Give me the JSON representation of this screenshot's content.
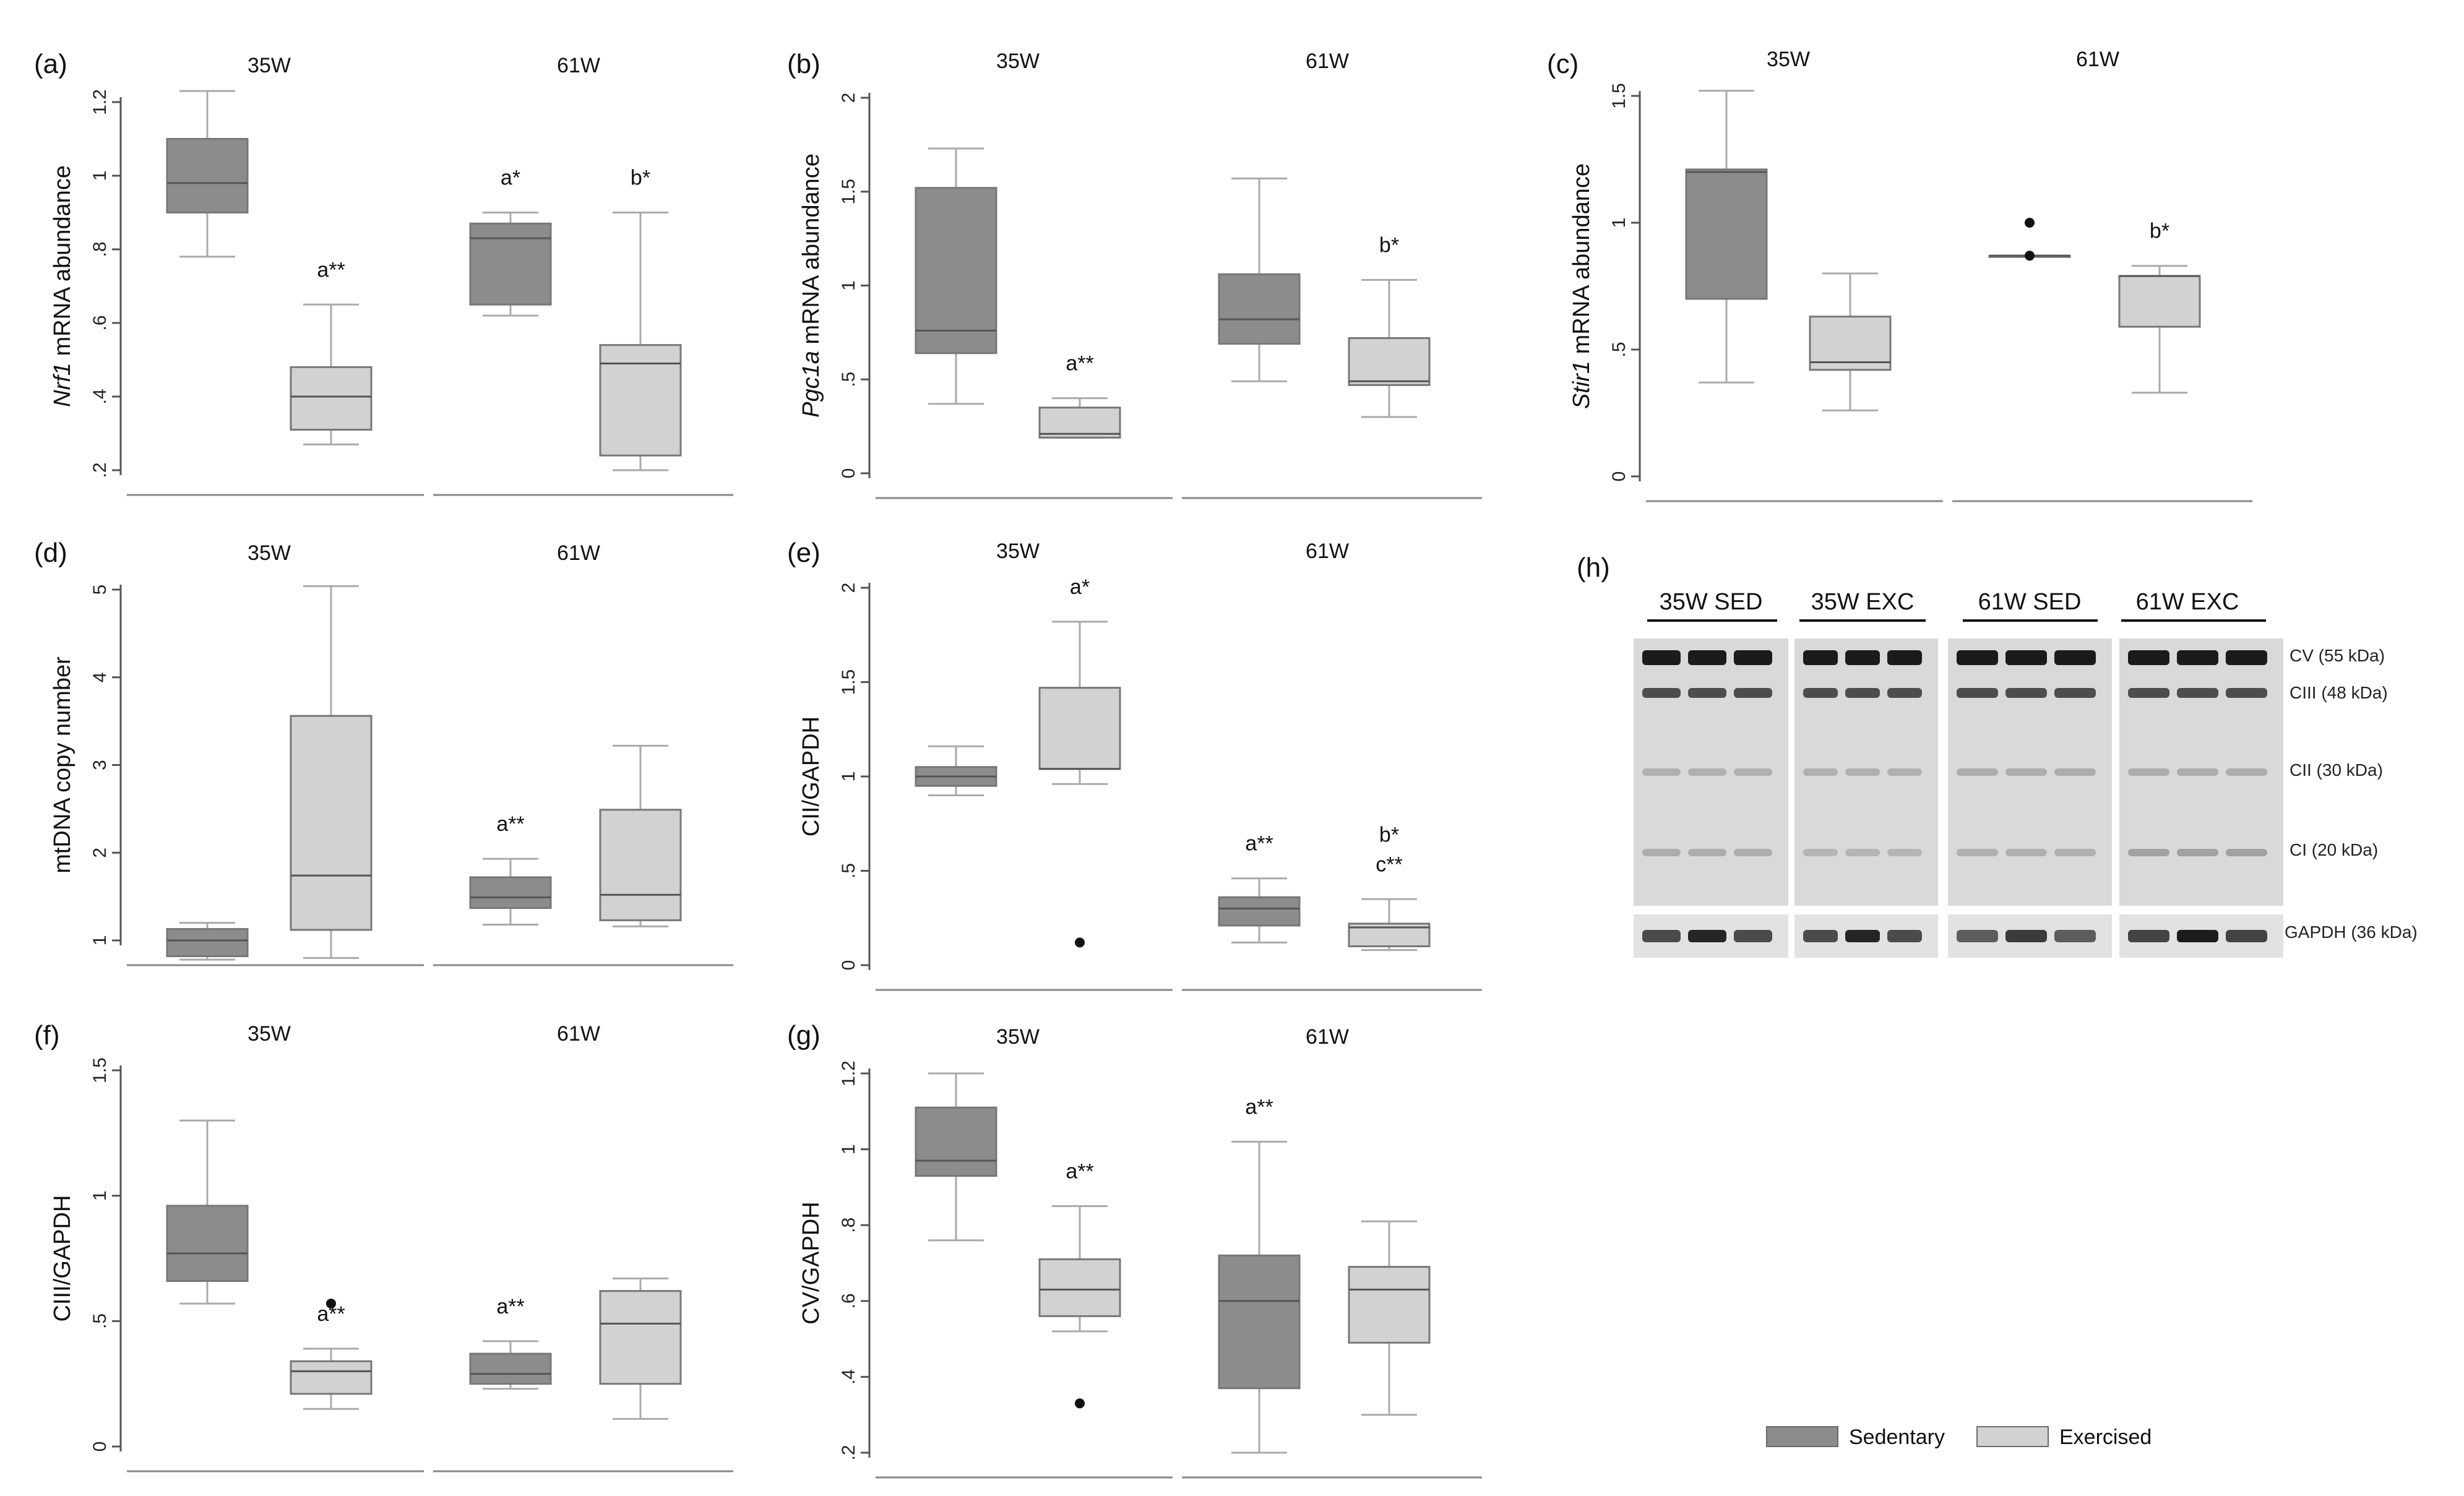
{
  "figure": {
    "legend": {
      "items": [
        {
          "label": "Sedentary",
          "color": "#8c8c8c"
        },
        {
          "label": "Exercised",
          "color": "#d2d2d2"
        }
      ]
    },
    "blot": {
      "label": "(h)",
      "groups": [
        "35W SED",
        "35W EXC",
        "61W SED",
        "61W EXC"
      ],
      "bands": [
        "CV (55 kDa)",
        "CIII (48 kDa)",
        "CII (30 kDa)",
        "CI (20 kDa)",
        "GAPDH (36 kDa)"
      ]
    }
  },
  "chart_data": [
    {
      "type": "boxplot",
      "panel": "(a)",
      "ylabel_italic": "Nrf1",
      "ylabel": "mRNA abundance",
      "ylim": [
        0.2,
        1.2
      ],
      "yticks": [
        0.2,
        0.4,
        0.6,
        0.8,
        1.0,
        1.2
      ],
      "ytick_labels": [
        ".2",
        ".4",
        ".6",
        ".8",
        "1",
        "1.2"
      ],
      "groups": [
        "35W",
        "61W"
      ],
      "boxes": [
        {
          "group": "35W",
          "condition": "Sedentary",
          "whisker_low": 0.78,
          "q1": 0.9,
          "median": 0.98,
          "q3": 1.1,
          "whisker_high": 1.23,
          "outliers": [],
          "annotation": []
        },
        {
          "group": "35W",
          "condition": "Exercised",
          "whisker_low": 0.27,
          "q1": 0.31,
          "median": 0.4,
          "q3": 0.48,
          "whisker_high": 0.65,
          "outliers": [],
          "annotation": [
            "a**"
          ]
        },
        {
          "group": "61W",
          "condition": "Sedentary",
          "whisker_low": 0.62,
          "q1": 0.65,
          "median": 0.83,
          "q3": 0.87,
          "whisker_high": 0.9,
          "outliers": [],
          "annotation": [
            "a*"
          ]
        },
        {
          "group": "61W",
          "condition": "Exercised",
          "whisker_low": 0.2,
          "q1": 0.24,
          "median": 0.49,
          "q3": 0.54,
          "whisker_high": 0.9,
          "outliers": [],
          "annotation": [
            "b*"
          ]
        }
      ]
    },
    {
      "type": "boxplot",
      "panel": "(b)",
      "ylabel_italic": "Pgc1a",
      "ylabel": "mRNA abundance",
      "ylim": [
        0,
        2
      ],
      "yticks": [
        0,
        0.5,
        1,
        1.5,
        2
      ],
      "ytick_labels": [
        "0",
        ".5",
        "1",
        "1.5",
        "2"
      ],
      "groups": [
        "35W",
        "61W"
      ],
      "boxes": [
        {
          "group": "35W",
          "condition": "Sedentary",
          "whisker_low": 0.37,
          "q1": 0.64,
          "median": 0.76,
          "q3": 1.52,
          "whisker_high": 1.73,
          "outliers": [],
          "annotation": []
        },
        {
          "group": "35W",
          "condition": "Exercised",
          "whisker_low": 0.19,
          "q1": 0.19,
          "median": 0.21,
          "q3": 0.35,
          "whisker_high": 0.4,
          "outliers": [],
          "annotation": [
            "a**"
          ]
        },
        {
          "group": "61W",
          "condition": "Sedentary",
          "whisker_low": 0.49,
          "q1": 0.69,
          "median": 0.82,
          "q3": 1.06,
          "whisker_high": 1.57,
          "outliers": [],
          "annotation": []
        },
        {
          "group": "61W",
          "condition": "Exercised",
          "whisker_low": 0.3,
          "q1": 0.47,
          "median": 0.49,
          "q3": 0.72,
          "whisker_high": 1.03,
          "outliers": [],
          "annotation": [
            "b*"
          ]
        }
      ]
    },
    {
      "type": "boxplot",
      "panel": "(c)",
      "ylabel_italic": "Stir1",
      "ylabel": "mRNA abundance",
      "ylim": [
        0,
        1.5
      ],
      "yticks": [
        0,
        0.5,
        1,
        1.5
      ],
      "ytick_labels": [
        "0",
        ".5",
        "1",
        "1.5"
      ],
      "groups": [
        "35W",
        "61W"
      ],
      "boxes": [
        {
          "group": "35W",
          "condition": "Sedentary",
          "whisker_low": 0.37,
          "q1": 0.7,
          "median": 1.2,
          "q3": 1.21,
          "whisker_high": 1.52,
          "outliers": [],
          "annotation": []
        },
        {
          "group": "35W",
          "condition": "Exercised",
          "whisker_low": 0.26,
          "q1": 0.42,
          "median": 0.45,
          "q3": 0.63,
          "whisker_high": 0.8,
          "outliers": [],
          "annotation": []
        },
        {
          "group": "61W",
          "condition": "Sedentary",
          "whisker_low": 0.87,
          "q1": 0.87,
          "median": 0.87,
          "q3": 0.87,
          "whisker_high": 0.87,
          "outliers": [
            1.0,
            0.87
          ],
          "annotation": []
        },
        {
          "group": "61W",
          "condition": "Exercised",
          "whisker_low": 0.33,
          "q1": 0.59,
          "median": 0.79,
          "q3": 0.79,
          "whisker_high": 0.83,
          "outliers": [],
          "annotation": [
            "b*"
          ]
        }
      ]
    },
    {
      "type": "boxplot",
      "panel": "(d)",
      "ylabel_italic": "",
      "ylabel": "mtDNA copy number",
      "ylim": [
        1,
        5
      ],
      "yticks": [
        1,
        2,
        3,
        4,
        5
      ],
      "ytick_labels": [
        "1",
        "2",
        "3",
        "4",
        "5"
      ],
      "groups": [
        "35W",
        "61W"
      ],
      "boxes": [
        {
          "group": "35W",
          "condition": "Sedentary",
          "whisker_low": 0.78,
          "q1": 0.82,
          "median": 1.0,
          "q3": 1.13,
          "whisker_high": 1.2,
          "outliers": [],
          "annotation": []
        },
        {
          "group": "35W",
          "condition": "Exercised",
          "whisker_low": 0.8,
          "q1": 1.12,
          "median": 1.74,
          "q3": 3.56,
          "whisker_high": 5.04,
          "outliers": [],
          "annotation": []
        },
        {
          "group": "61W",
          "condition": "Sedentary",
          "whisker_low": 1.18,
          "q1": 1.37,
          "median": 1.49,
          "q3": 1.72,
          "whisker_high": 1.93,
          "outliers": [],
          "annotation": [
            "a**"
          ]
        },
        {
          "group": "61W",
          "condition": "Exercised",
          "whisker_low": 1.16,
          "q1": 1.23,
          "median": 1.52,
          "q3": 2.49,
          "whisker_high": 3.22,
          "outliers": [],
          "annotation": []
        }
      ]
    },
    {
      "type": "boxplot",
      "panel": "(e)",
      "ylabel_italic": "",
      "ylabel": "CII/GAPDH",
      "ylim": [
        0,
        2
      ],
      "yticks": [
        0,
        0.5,
        1,
        1.5,
        2
      ],
      "ytick_labels": [
        "0",
        ".5",
        "1",
        "1.5",
        "2"
      ],
      "groups": [
        "35W",
        "61W"
      ],
      "boxes": [
        {
          "group": "35W",
          "condition": "Sedentary",
          "whisker_low": 0.9,
          "q1": 0.95,
          "median": 1.0,
          "q3": 1.05,
          "whisker_high": 1.16,
          "outliers": [],
          "annotation": []
        },
        {
          "group": "35W",
          "condition": "Exercised",
          "whisker_low": 0.96,
          "q1": 1.04,
          "median": 1.04,
          "q3": 1.47,
          "whisker_high": 1.82,
          "outliers": [
            0.12
          ],
          "annotation": [
            "a*"
          ]
        },
        {
          "group": "61W",
          "condition": "Sedentary",
          "whisker_low": 0.12,
          "q1": 0.21,
          "median": 0.3,
          "q3": 0.36,
          "whisker_high": 0.46,
          "outliers": [],
          "annotation": [
            "a**"
          ]
        },
        {
          "group": "61W",
          "condition": "Exercised",
          "whisker_low": 0.08,
          "q1": 0.1,
          "median": 0.2,
          "q3": 0.22,
          "whisker_high": 0.35,
          "outliers": [],
          "annotation": [
            "b*",
            "c**"
          ]
        }
      ]
    },
    {
      "type": "boxplot",
      "panel": "(f)",
      "ylabel_italic": "",
      "ylabel": "CIII/GAPDH",
      "ylim": [
        0,
        1.5
      ],
      "yticks": [
        0,
        0.5,
        1,
        1.5
      ],
      "ytick_labels": [
        "0",
        ".5",
        "1",
        "1.5"
      ],
      "groups": [
        "35W",
        "61W"
      ],
      "boxes": [
        {
          "group": "35W",
          "condition": "Sedentary",
          "whisker_low": 0.57,
          "q1": 0.66,
          "median": 0.77,
          "q3": 0.96,
          "whisker_high": 1.3,
          "outliers": [],
          "annotation": []
        },
        {
          "group": "35W",
          "condition": "Exercised",
          "whisker_low": 0.15,
          "q1": 0.21,
          "median": 0.3,
          "q3": 0.34,
          "whisker_high": 0.39,
          "outliers": [
            0.57
          ],
          "annotation": [
            "a**"
          ]
        },
        {
          "group": "61W",
          "condition": "Sedentary",
          "whisker_low": 0.23,
          "q1": 0.25,
          "median": 0.29,
          "q3": 0.37,
          "whisker_high": 0.42,
          "outliers": [],
          "annotation": [
            "a**"
          ]
        },
        {
          "group": "61W",
          "condition": "Exercised",
          "whisker_low": 0.11,
          "q1": 0.25,
          "median": 0.49,
          "q3": 0.62,
          "whisker_high": 0.67,
          "outliers": [],
          "annotation": []
        }
      ]
    },
    {
      "type": "boxplot",
      "panel": "(g)",
      "ylabel_italic": "",
      "ylabel": "CV/GAPDH",
      "ylim": [
        0.2,
        1.2
      ],
      "yticks": [
        0.2,
        0.4,
        0.6,
        0.8,
        1.0,
        1.2
      ],
      "ytick_labels": [
        ".2",
        ".4",
        ".6",
        ".8",
        "1",
        "1.2"
      ],
      "groups": [
        "35W",
        "61W"
      ],
      "boxes": [
        {
          "group": "35W",
          "condition": "Sedentary",
          "whisker_low": 0.76,
          "q1": 0.93,
          "median": 0.97,
          "q3": 1.11,
          "whisker_high": 1.2,
          "outliers": [],
          "annotation": []
        },
        {
          "group": "35W",
          "condition": "Exercised",
          "whisker_low": 0.52,
          "q1": 0.56,
          "median": 0.63,
          "q3": 0.71,
          "whisker_high": 0.85,
          "outliers": [
            0.33
          ],
          "annotation": [
            "a**"
          ]
        },
        {
          "group": "61W",
          "condition": "Sedentary",
          "whisker_low": 0.2,
          "q1": 0.37,
          "median": 0.6,
          "q3": 0.72,
          "whisker_high": 1.02,
          "outliers": [],
          "annotation": [
            "a**"
          ]
        },
        {
          "group": "61W",
          "condition": "Exercised",
          "whisker_low": 0.3,
          "q1": 0.49,
          "median": 0.63,
          "q3": 0.69,
          "whisker_high": 0.81,
          "outliers": [],
          "annotation": []
        }
      ]
    }
  ]
}
